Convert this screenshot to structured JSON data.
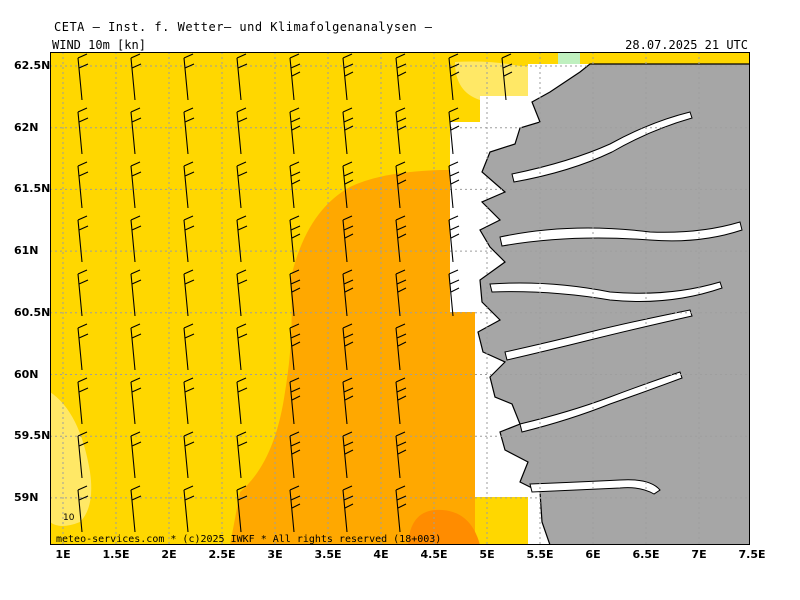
{
  "header": {
    "title": "CETA — Inst. f. Wetter— und Klimafolgenanalysen —",
    "parameter": "WIND 10m [kn]",
    "datetime": "28.07.2025 21 UTC"
  },
  "map": {
    "region": "Western Norway coast",
    "lon_range": [
      1,
      7.5
    ],
    "lat_range": [
      58.7,
      62.7
    ],
    "x_axis_labels": [
      "1E",
      "1.5E",
      "2E",
      "2.5E",
      "3E",
      "3.5E",
      "4E",
      "4.5E",
      "5E",
      "5.5E",
      "6E",
      "6.5E",
      "7E",
      "7.5E"
    ],
    "y_axis_labels": [
      "62.5N",
      "62N",
      "61.5N",
      "61N",
      "60.5N",
      "60N",
      "59.5N",
      "59N"
    ],
    "contour_label": "10",
    "colors": {
      "wind_10_15kn": "#FFD700",
      "wind_5_10kn": "#FFE866",
      "wind_15_20kn": "#FFA800",
      "wind_20_25kn": "#FF8C00",
      "land": "#A6A6A6",
      "coast_outline": "#000000",
      "grid": "#9E9E9E",
      "green_patch": "#BFF0BF"
    },
    "wind_barb_icon": "wind-barb-icon"
  },
  "footer": {
    "credit": "meteo-services.com * (c)2025 IWKF * All rights reserved (18+003)"
  }
}
